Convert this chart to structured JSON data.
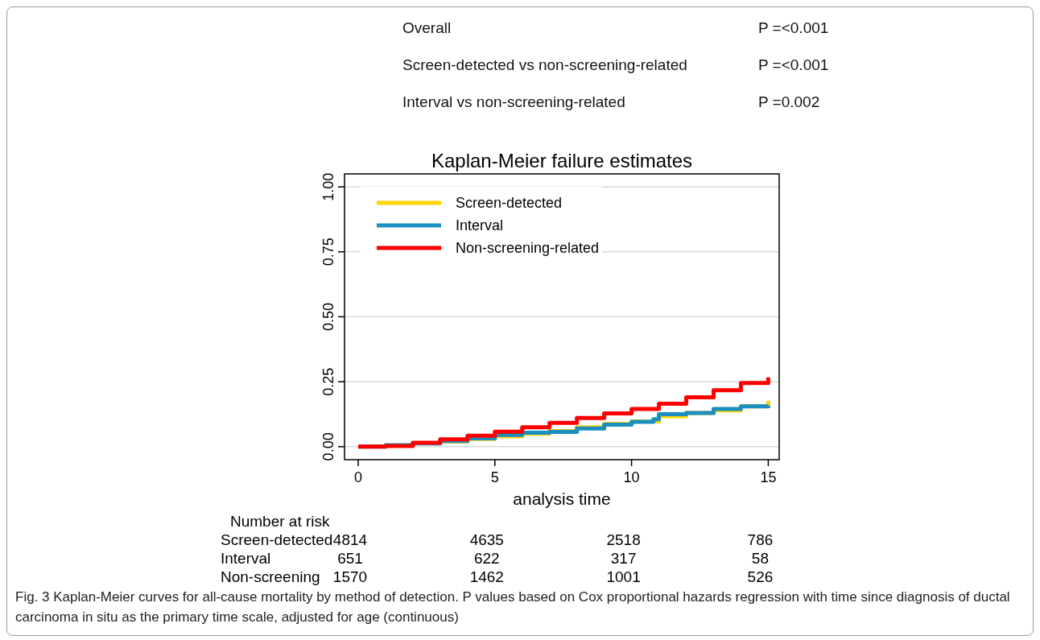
{
  "chart_data": {
    "type": "step",
    "title": "Kaplan-Meier failure estimates",
    "xlabel": "analysis time",
    "xlim": [
      -0.5,
      15.4
    ],
    "xticks": [
      0,
      5,
      10,
      15
    ],
    "ylim": [
      -0.05,
      1.05
    ],
    "yticks": [
      {
        "value": 0,
        "label": "0.00"
      },
      {
        "value": 0.25,
        "label": "0.25"
      },
      {
        "value": 0.5,
        "label": "0.50"
      },
      {
        "value": 0.75,
        "label": "0.75"
      },
      {
        "value": 1,
        "label": "1.00"
      }
    ],
    "grid": "y",
    "legend": "top left",
    "line_style": "solid",
    "marker": "none",
    "series": [
      {
        "name": "Screen-detected",
        "color": "#ffd400",
        "x": [
          3,
          4,
          5,
          6,
          7,
          8,
          9,
          10,
          11,
          12,
          13,
          14,
          15
        ],
        "values": [
          0.02,
          0.03,
          0.04,
          0.05,
          0.06,
          0.075,
          0.088,
          0.097,
          0.117,
          0.13,
          0.14,
          0.155,
          0.176
        ]
      },
      {
        "name": "Interval",
        "color": "#1a8fc0",
        "x": [
          0,
          1,
          2,
          3,
          4,
          5,
          6,
          7,
          8,
          9,
          10,
          10.8,
          11,
          12,
          13,
          14,
          15
        ],
        "values": [
          0,
          0.006,
          0.013,
          0.022,
          0.032,
          0.045,
          0.054,
          0.057,
          0.07,
          0.085,
          0.096,
          0.106,
          0.125,
          0.13,
          0.145,
          0.155,
          0.158
        ]
      },
      {
        "name": "Non-screening-related",
        "color": "#ff0000",
        "x": [
          0,
          1,
          2,
          3,
          4,
          5,
          6,
          7,
          8,
          9,
          10,
          11,
          12,
          13,
          14,
          15
        ],
        "values": [
          0,
          0.003,
          0.015,
          0.028,
          0.042,
          0.058,
          0.075,
          0.092,
          0.11,
          0.128,
          0.145,
          0.165,
          0.19,
          0.217,
          0.245,
          0.267
        ]
      }
    ],
    "annotations": [
      "Overall",
      "P =<0.001",
      "Screen-detected vs non-screening-related",
      "P =<0.001",
      "Interval vs non-screening-related",
      "P =0.002",
      "Number at risk",
      "Screen-detected",
      "4814",
      "4635",
      "2518",
      "786",
      "Interval",
      "651",
      "622",
      "317",
      "58",
      "Non-screening",
      "1570",
      "1462",
      "1001",
      "526",
      "Fig. 3 Kaplan-Meier curves for all-cause mortality by method of detection. P values based on Cox proportional hazards regression with time since diagnosis of ductal carcinoma in situ as the primary time scale, adjusted for age (continuous)"
    ]
  }
}
